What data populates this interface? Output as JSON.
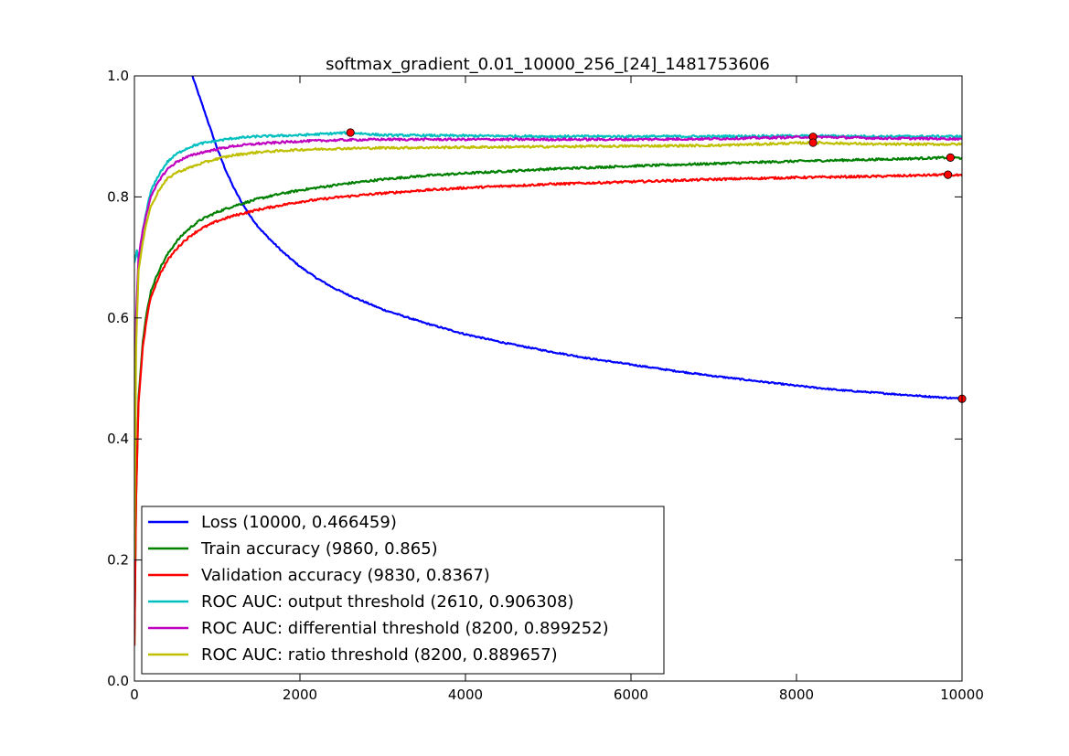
{
  "chart_data": {
    "type": "line",
    "title": "softmax_gradient_0.01_10000_256_[24]_1481753606",
    "xlabel": "",
    "ylabel": "",
    "xlim": [
      0,
      10000
    ],
    "ylim": [
      0.0,
      1.0
    ],
    "x_ticks": [
      0,
      2000,
      4000,
      6000,
      8000,
      10000
    ],
    "x_tick_labels": [
      "0",
      "2000",
      "4000",
      "6000",
      "8000",
      "10000"
    ],
    "y_ticks": [
      0.0,
      0.2,
      0.4,
      0.6,
      0.8,
      1.0
    ],
    "y_tick_labels": [
      "0.0",
      "0.2",
      "0.4",
      "0.6",
      "0.8",
      "1.0"
    ],
    "grid": false,
    "legend_position": "lower-left",
    "series": [
      {
        "name": "Loss (10000, 0.466459)",
        "color": "#0000ff",
        "x": [
          700,
          800,
          900,
          1000,
          1100,
          1200,
          1300,
          1400,
          1500,
          1600,
          1800,
          2000,
          2200,
          2400,
          2600,
          3000,
          3500,
          4000,
          4500,
          5000,
          5500,
          6000,
          6500,
          7000,
          7500,
          8000,
          8500,
          9000,
          9500,
          10000
        ],
        "values": [
          1.0,
          0.96,
          0.92,
          0.88,
          0.845,
          0.815,
          0.79,
          0.768,
          0.75,
          0.735,
          0.708,
          0.685,
          0.666,
          0.65,
          0.637,
          0.614,
          0.592,
          0.573,
          0.558,
          0.545,
          0.533,
          0.523,
          0.513,
          0.504,
          0.496,
          0.488,
          0.481,
          0.476,
          0.471,
          0.466459
        ],
        "marker": {
          "x": 10000,
          "y": 0.466459
        }
      },
      {
        "name": "Train accuracy (9860, 0.865)",
        "color": "#008000",
        "x": [
          0,
          20,
          50,
          100,
          150,
          200,
          300,
          400,
          500,
          600,
          700,
          800,
          1000,
          1200,
          1500,
          1800,
          2000,
          2500,
          3000,
          3500,
          4000,
          5000,
          6000,
          7000,
          8000,
          9000,
          9860,
          10000
        ],
        "values": [
          0.06,
          0.3,
          0.47,
          0.56,
          0.61,
          0.645,
          0.68,
          0.705,
          0.725,
          0.74,
          0.752,
          0.762,
          0.775,
          0.785,
          0.797,
          0.806,
          0.811,
          0.821,
          0.829,
          0.835,
          0.839,
          0.846,
          0.851,
          0.855,
          0.859,
          0.862,
          0.865,
          0.864
        ],
        "marker": {
          "x": 9860,
          "y": 0.865
        }
      },
      {
        "name": "Validation accuracy (9830, 0.8367)",
        "color": "#ff0000",
        "x": [
          0,
          20,
          50,
          100,
          150,
          200,
          300,
          400,
          500,
          600,
          700,
          800,
          1000,
          1200,
          1500,
          1800,
          2000,
          2500,
          3000,
          3500,
          4000,
          5000,
          6000,
          7000,
          8000,
          9000,
          9830,
          10000
        ],
        "values": [
          0.06,
          0.3,
          0.46,
          0.55,
          0.6,
          0.635,
          0.67,
          0.695,
          0.713,
          0.727,
          0.738,
          0.747,
          0.76,
          0.769,
          0.779,
          0.787,
          0.792,
          0.8,
          0.806,
          0.811,
          0.815,
          0.821,
          0.825,
          0.829,
          0.832,
          0.834,
          0.8367,
          0.835
        ],
        "marker": {
          "x": 9830,
          "y": 0.8367
        }
      },
      {
        "name": "ROC AUC: output threshold (2610, 0.906308)",
        "color": "#00bfbf",
        "x": [
          0,
          30,
          60,
          100,
          150,
          200,
          300,
          400,
          500,
          600,
          700,
          800,
          1000,
          1200,
          1500,
          2000,
          2610,
          3000,
          4000,
          5000,
          6000,
          7000,
          8000,
          9000,
          10000
        ],
        "values": [
          0.69,
          0.71,
          0.69,
          0.745,
          0.78,
          0.81,
          0.838,
          0.858,
          0.87,
          0.878,
          0.884,
          0.888,
          0.893,
          0.897,
          0.9,
          0.902,
          0.906308,
          0.902,
          0.901,
          0.9,
          0.9,
          0.9,
          0.901,
          0.9,
          0.9
        ],
        "marker": {
          "x": 2610,
          "y": 0.906308
        }
      },
      {
        "name": "ROC AUC: differential threshold (8200, 0.899252)",
        "color": "#bf00bf",
        "x": [
          0,
          20,
          50,
          100,
          150,
          200,
          300,
          400,
          500,
          600,
          700,
          800,
          1000,
          1200,
          1500,
          2000,
          2500,
          3000,
          4000,
          5000,
          6000,
          7000,
          8200,
          9000,
          10000
        ],
        "values": [
          0.25,
          0.6,
          0.7,
          0.745,
          0.775,
          0.8,
          0.828,
          0.846,
          0.857,
          0.864,
          0.869,
          0.873,
          0.879,
          0.884,
          0.888,
          0.892,
          0.894,
          0.895,
          0.895,
          0.895,
          0.895,
          0.896,
          0.899252,
          0.897,
          0.896
        ],
        "marker": {
          "x": 8200,
          "y": 0.899252
        }
      },
      {
        "name": "ROC AUC: ratio threshold (8200, 0.889657)",
        "color": "#bfbf00",
        "x": [
          0,
          20,
          50,
          100,
          150,
          200,
          300,
          400,
          500,
          600,
          700,
          800,
          1000,
          1200,
          1500,
          2000,
          2500,
          3000,
          4000,
          5000,
          6000,
          7000,
          8200,
          9000,
          10000
        ],
        "values": [
          0.2,
          0.55,
          0.68,
          0.725,
          0.76,
          0.785,
          0.812,
          0.83,
          0.84,
          0.845,
          0.85,
          0.855,
          0.863,
          0.869,
          0.874,
          0.878,
          0.88,
          0.881,
          0.882,
          0.883,
          0.884,
          0.885,
          0.889657,
          0.887,
          0.887
        ],
        "marker": {
          "x": 8200,
          "y": 0.889657
        }
      }
    ]
  }
}
